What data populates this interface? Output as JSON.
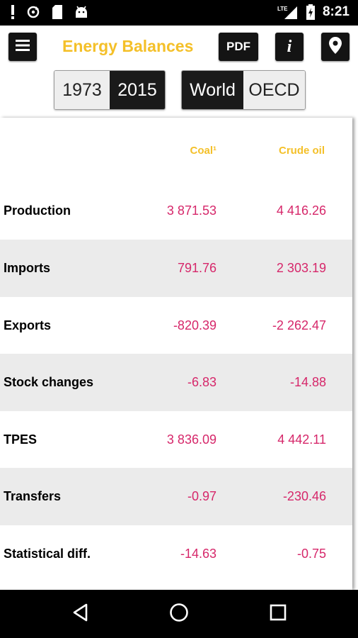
{
  "status_bar": {
    "time": "8:21",
    "network_label": "LTE",
    "left_icons": [
      "alert-icon",
      "sync-icon",
      "sd-card-icon",
      "android-icon"
    ],
    "right_icons": [
      "signal-icon",
      "battery-charging-icon"
    ]
  },
  "header": {
    "title": "Energy Balances",
    "pdf_label": "PDF",
    "info_label": "i",
    "menu_icon": "menu-icon",
    "location_icon": "location-pin-icon",
    "accent_color": "#f4c029"
  },
  "year_toggle": {
    "options": [
      "1973",
      "2015"
    ],
    "selected": "2015"
  },
  "region_toggle": {
    "options": [
      "World",
      "OECD"
    ],
    "selected": "World"
  },
  "table": {
    "columns": [
      "Coal¹",
      "Crude oil"
    ],
    "value_color": "#d6276a",
    "rows": [
      {
        "label": "Production",
        "coal": "3 871.53",
        "crude": "4 416.26"
      },
      {
        "label": "Imports",
        "coal": "791.76",
        "crude": "2 303.19"
      },
      {
        "label": "Exports",
        "coal": "-820.39",
        "crude": "-2 262.47"
      },
      {
        "label": "Stock changes",
        "coal": "-6.83",
        "crude": "-14.88"
      },
      {
        "label": "TPES",
        "coal": "3 836.09",
        "crude": "4 442.11"
      },
      {
        "label": "Transfers",
        "coal": "-0.97",
        "crude": "-230.46"
      },
      {
        "label": "Statistical diff.",
        "coal": "-14.63",
        "crude": "-0.75"
      }
    ]
  },
  "nav_bar": {
    "icons": [
      "back-icon",
      "home-icon",
      "recents-icon"
    ]
  }
}
